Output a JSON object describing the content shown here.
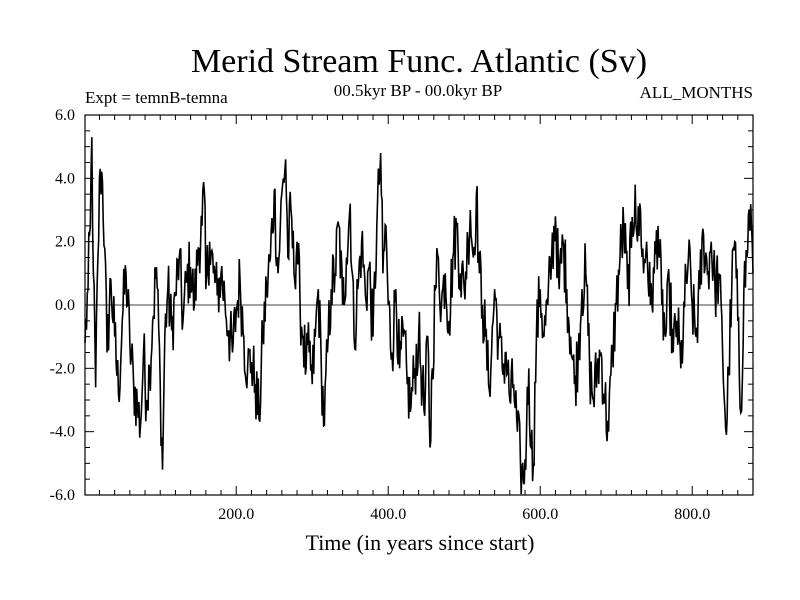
{
  "chart_data": {
    "type": "line",
    "title": "Merid Stream Func. Atlantic (Sv)",
    "subtitle_left": "Expt = temnB-temna",
    "subtitle_center": "00.5kyr BP - 00.0kyr BP",
    "subtitle_right": "ALL_MONTHS",
    "xlabel": "Time (in years since start)",
    "ylabel": "",
    "xlim": [
      1,
      880
    ],
    "ylim": [
      -6.0,
      6.0
    ],
    "x_ticks": [
      "200.0",
      "400.0",
      "600.0",
      "800.0"
    ],
    "x_tick_values": [
      200,
      400,
      600,
      800
    ],
    "y_ticks": [
      "6.0",
      "4.0",
      "2.0",
      "0.0",
      "-2.0",
      "-4.0",
      "-6.0"
    ],
    "y_tick_values": [
      6,
      4,
      2,
      0,
      -2,
      -4,
      -6
    ],
    "reference_line": 0,
    "series": [
      {
        "name": "Merid Stream Func. Atlantic",
        "anchors": [
          [
            1,
            -1.2
          ],
          [
            5,
            0.5
          ],
          [
            8,
            2.5
          ],
          [
            10,
            5.3
          ],
          [
            12,
            1.0
          ],
          [
            15,
            -2.6
          ],
          [
            18,
            1.5
          ],
          [
            21,
            4.3
          ],
          [
            24,
            3.9
          ],
          [
            27,
            1.8
          ],
          [
            30,
            -1.5
          ],
          [
            35,
            0.8
          ],
          [
            40,
            -1.0
          ],
          [
            45,
            -2.8
          ],
          [
            50,
            -0.5
          ],
          [
            55,
            1.0
          ],
          [
            60,
            -1.2
          ],
          [
            65,
            -2.5
          ],
          [
            70,
            -3.2
          ],
          [
            74,
            -3.8
          ],
          [
            78,
            -1.5
          ],
          [
            82,
            -3.0
          ],
          [
            86,
            -2.0
          ],
          [
            90,
            -0.5
          ],
          [
            95,
            1.2
          ],
          [
            100,
            -2.5
          ],
          [
            103,
            -5.2
          ],
          [
            106,
            -1.0
          ],
          [
            110,
            0.5
          ],
          [
            115,
            -0.8
          ],
          [
            120,
            0.3
          ],
          [
            125,
            1.5
          ],
          [
            130,
            -0.5
          ],
          [
            135,
            0.8
          ],
          [
            140,
            1.2
          ],
          [
            145,
            0.0
          ],
          [
            150,
            1.8
          ],
          [
            155,
            2.5
          ],
          [
            158,
            3.6
          ],
          [
            160,
            0.5
          ],
          [
            165,
            2.0
          ],
          [
            170,
            1.0
          ],
          [
            175,
            0.3
          ],
          [
            180,
            1.0
          ],
          [
            185,
            0.2
          ],
          [
            190,
            -0.8
          ],
          [
            195,
            -1.5
          ],
          [
            200,
            -0.2
          ],
          [
            205,
            0.8
          ],
          [
            210,
            -1.0
          ],
          [
            215,
            -2.0
          ],
          [
            220,
            -1.8
          ],
          [
            225,
            -2.5
          ],
          [
            230,
            -3.6
          ],
          [
            235,
            -1.0
          ],
          [
            240,
            0.5
          ],
          [
            245,
            1.5
          ],
          [
            250,
            3.6
          ],
          [
            255,
            1.0
          ],
          [
            258,
            2.5
          ],
          [
            262,
            4.0
          ],
          [
            265,
            4.6
          ],
          [
            268,
            1.5
          ],
          [
            272,
            3.0
          ],
          [
            276,
            1.0
          ],
          [
            280,
            2.0
          ],
          [
            284,
            0.0
          ],
          [
            288,
            -1.0
          ],
          [
            292,
            -2.0
          ],
          [
            296,
            -1.5
          ],
          [
            300,
            -2.5
          ],
          [
            304,
            -1.0
          ],
          [
            308,
            0.5
          ],
          [
            312,
            -2.0
          ],
          [
            316,
            -3.8
          ],
          [
            320,
            -1.5
          ],
          [
            325,
            0.5
          ],
          [
            330,
            1.0
          ],
          [
            335,
            2.5
          ],
          [
            340,
            0.0
          ],
          [
            345,
            1.5
          ],
          [
            350,
            3.2
          ],
          [
            355,
            -1.0
          ],
          [
            360,
            0.5
          ],
          [
            365,
            2.0
          ],
          [
            370,
            0.3
          ],
          [
            375,
            1.2
          ],
          [
            380,
            -1.0
          ],
          [
            385,
            2.5
          ],
          [
            388,
            3.8
          ],
          [
            390,
            4.8
          ],
          [
            393,
            1.0
          ],
          [
            397,
            2.5
          ],
          [
            400,
            0.0
          ],
          [
            405,
            -1.5
          ],
          [
            410,
            0.5
          ],
          [
            415,
            -2.0
          ],
          [
            420,
            -1.0
          ],
          [
            425,
            -2.5
          ],
          [
            430,
            -3.2
          ],
          [
            435,
            -2.0
          ],
          [
            440,
            -1.0
          ],
          [
            445,
            -2.5
          ],
          [
            448,
            -3.5
          ],
          [
            452,
            -1.0
          ],
          [
            455,
            -4.5
          ],
          [
            458,
            -2.0
          ],
          [
            462,
            0.5
          ],
          [
            466,
            1.5
          ],
          [
            470,
            0.0
          ],
          [
            475,
            1.0
          ],
          [
            480,
            -0.5
          ],
          [
            485,
            1.5
          ],
          [
            490,
            2.5
          ],
          [
            495,
            1.0
          ],
          [
            500,
            0.5
          ],
          [
            505,
            2.0
          ],
          [
            508,
            3.0
          ],
          [
            512,
            1.5
          ],
          [
            516,
            3.5
          ],
          [
            520,
            1.0
          ],
          [
            524,
            0.0
          ],
          [
            528,
            -1.0
          ],
          [
            532,
            -2.5
          ],
          [
            536,
            -1.5
          ],
          [
            540,
            0.5
          ],
          [
            545,
            -1.0
          ],
          [
            550,
            -2.0
          ],
          [
            555,
            -1.5
          ],
          [
            560,
            -3.0
          ],
          [
            565,
            -2.5
          ],
          [
            570,
            -4.0
          ],
          [
            574,
            -5.0
          ],
          [
            578,
            -5.6
          ],
          [
            582,
            -4.0
          ],
          [
            585,
            -2.0
          ],
          [
            588,
            -4.5
          ],
          [
            591,
            -5.0
          ],
          [
            595,
            -1.0
          ],
          [
            600,
            0.5
          ],
          [
            605,
            -1.0
          ],
          [
            610,
            0.0
          ],
          [
            615,
            1.5
          ],
          [
            620,
            2.8
          ],
          [
            625,
            0.5
          ],
          [
            630,
            2.0
          ],
          [
            635,
            0.5
          ],
          [
            640,
            -1.0
          ],
          [
            645,
            -2.5
          ],
          [
            650,
            -1.5
          ],
          [
            655,
            0.5
          ],
          [
            660,
            1.0
          ],
          [
            665,
            -2.0
          ],
          [
            670,
            -3.0
          ],
          [
            675,
            -2.0
          ],
          [
            680,
            -1.5
          ],
          [
            685,
            -3.0
          ],
          [
            690,
            -4.0
          ],
          [
            695,
            -1.5
          ],
          [
            700,
            0.0
          ],
          [
            705,
            1.5
          ],
          [
            710,
            2.5
          ],
          [
            715,
            0.5
          ],
          [
            720,
            1.8
          ],
          [
            725,
            3.8
          ],
          [
            728,
            2.0
          ],
          [
            732,
            3.0
          ],
          [
            736,
            1.0
          ],
          [
            740,
            2.0
          ],
          [
            745,
            0.0
          ],
          [
            750,
            1.0
          ],
          [
            755,
            2.5
          ],
          [
            760,
            0.0
          ],
          [
            765,
            -1.0
          ],
          [
            770,
            0.5
          ],
          [
            775,
            -1.5
          ],
          [
            780,
            -0.5
          ],
          [
            785,
            -2.0
          ],
          [
            790,
            0.0
          ],
          [
            795,
            1.5
          ],
          [
            800,
            0.0
          ],
          [
            805,
            -1.0
          ],
          [
            810,
            0.5
          ],
          [
            815,
            2.2
          ],
          [
            820,
            1.0
          ],
          [
            825,
            2.0
          ],
          [
            830,
            0.5
          ],
          [
            835,
            1.0
          ],
          [
            840,
            -1.5
          ],
          [
            845,
            -4.1
          ],
          [
            848,
            -2.0
          ],
          [
            852,
            0.5
          ],
          [
            856,
            2.0
          ],
          [
            860,
            -0.5
          ],
          [
            864,
            -3.4
          ],
          [
            868,
            0.5
          ],
          [
            872,
            1.5
          ],
          [
            875,
            3.0
          ],
          [
            878,
            2.5
          ],
          [
            880,
            1.0
          ]
        ]
      }
    ]
  }
}
